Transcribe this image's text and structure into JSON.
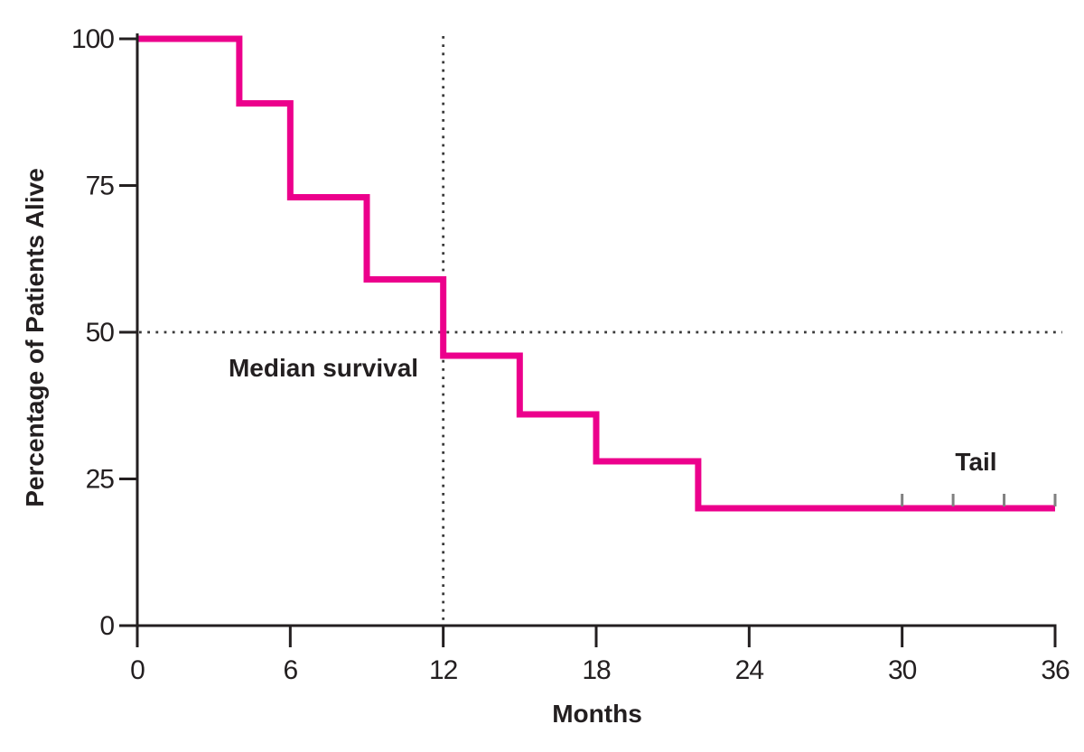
{
  "chart_data": {
    "type": "line",
    "subtype": "kaplan-meier-step-survival-curve",
    "title": "",
    "xlabel": "Months",
    "ylabel": "Percentage of Patients Alive",
    "xlim": [
      0,
      36
    ],
    "ylim": [
      0,
      100
    ],
    "x_ticks": [
      0,
      6,
      12,
      18,
      24,
      30,
      36
    ],
    "y_ticks": [
      0,
      25,
      50,
      75,
      100
    ],
    "grid": false,
    "legend": false,
    "series": [
      {
        "name": "survival-curve",
        "step_points": [
          [
            0,
            100
          ],
          [
            4,
            100
          ],
          [
            4,
            89
          ],
          [
            6,
            89
          ],
          [
            6,
            73
          ],
          [
            9,
            73
          ],
          [
            9,
            59
          ],
          [
            12,
            59
          ],
          [
            12,
            46
          ],
          [
            15,
            46
          ],
          [
            15,
            36
          ],
          [
            18,
            36
          ],
          [
            18,
            28
          ],
          [
            22,
            28
          ],
          [
            22,
            20
          ],
          [
            36,
            20
          ]
        ]
      }
    ],
    "censor_marks": {
      "x_months": [
        30,
        32,
        34,
        36
      ],
      "y_percent": 20
    },
    "reference_lines": {
      "horizontal_at_percent": 50,
      "vertical_at_month": 12,
      "style": "dotted"
    },
    "annotations": [
      {
        "text": "Median survival",
        "x": 7.3,
        "y": 43.8
      },
      {
        "text": "Tail",
        "x": 32.9,
        "y": 27.8
      }
    ],
    "colors": {
      "curve": "#EC008C",
      "axis": "#231F20",
      "text": "#231F20",
      "dotted": "#3A3A3A",
      "censor": "#808080",
      "background": "#FFFFFF"
    }
  }
}
